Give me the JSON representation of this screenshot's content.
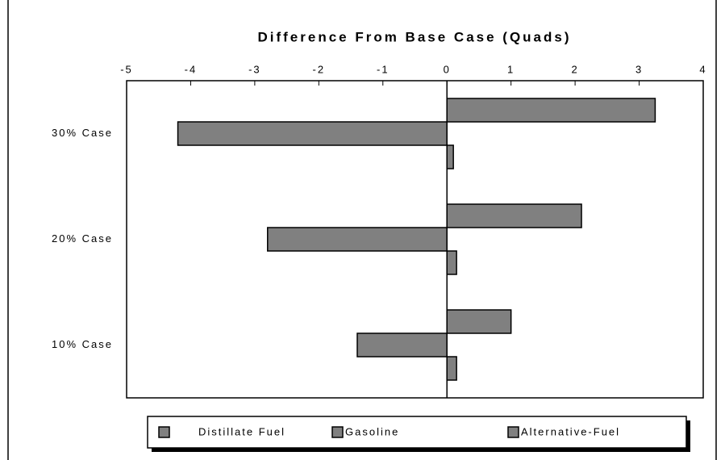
{
  "chart_data": {
    "type": "hbar",
    "title": "Difference From Base Case (Quads)",
    "categories": [
      "30% Case",
      "20% Case",
      "10% Case"
    ],
    "series": [
      {
        "name": "Distillate Fuel",
        "color": "#808080",
        "values": [
          3.25,
          2.1,
          1.0
        ]
      },
      {
        "name": "Gasoline",
        "color": "#808080",
        "values": [
          -4.2,
          -2.8,
          -1.4
        ]
      },
      {
        "name": "Alternative-Fuel",
        "color": "#808080",
        "values": [
          0.1,
          0.15,
          0.15
        ]
      }
    ],
    "xlim": [
      -5,
      4
    ],
    "xticks": [
      -5,
      -4,
      -3,
      -2,
      -1,
      0,
      1,
      2,
      3,
      4
    ],
    "legend": "bottom"
  }
}
